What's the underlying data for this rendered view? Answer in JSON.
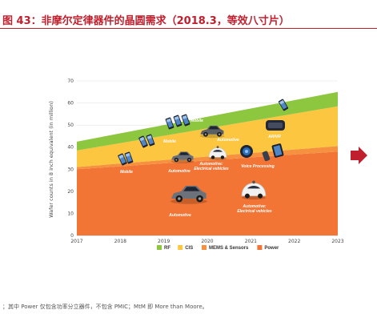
{
  "page": {
    "title": "图 43：非摩尔定律器件的晶圆需求（2018.3，等效八寸片）",
    "footnote": "；其中 Power 仅包含功率分立器件，不包含 PMIC；MtM 即 More than Moore。"
  },
  "colors": {
    "title_red": "#c0202e",
    "Power": "#f37535",
    "MEMS & Sensors": "#f5913f",
    "CIS": "#fdc640",
    "RF": "#8dc63f",
    "arrow": "#c0202e"
  },
  "chart_data": {
    "type": "area",
    "stacked": true,
    "title": "",
    "xlabel": "",
    "ylabel": "Wafer counts in 8 inch equivalent (in million)",
    "x": [
      2017,
      2023
    ],
    "x_ticks": [
      "2017",
      "2018",
      "2019",
      "2020",
      "2021",
      "2022",
      "2023"
    ],
    "ylim": [
      0,
      70
    ],
    "y_ticks": [
      0,
      10,
      20,
      30,
      40,
      50,
      60,
      70
    ],
    "grid": true,
    "legend_position": "bottom",
    "series": [
      {
        "name": "Power",
        "values": [
          30,
          38
        ]
      },
      {
        "name": "MEMS & Sensors",
        "values": [
          1,
          2.5
        ]
      },
      {
        "name": "CIS",
        "values": [
          7.5,
          18
        ]
      },
      {
        "name": "RF",
        "values": [
          4,
          6.5
        ]
      }
    ],
    "legend": [
      "RF",
      "CIS",
      "MEMS & Sensors",
      "Power"
    ],
    "annotations": [
      {
        "id": "mobile-1",
        "label": "Mobile",
        "icon": "smartphone-icon"
      },
      {
        "id": "mobile-2",
        "label": "Mobile",
        "icon": "smartphone-icon"
      },
      {
        "id": "mobile-3",
        "label": "Mobile",
        "icon": "smartphone-icon"
      },
      {
        "id": "automotive-1",
        "label": "Automotive",
        "icon": "car-icon"
      },
      {
        "id": "automotive-2",
        "label": "Automotive",
        "icon": "car-icon"
      },
      {
        "id": "automotive-3",
        "label": "Automotive",
        "icon": "car-icon"
      },
      {
        "id": "automotive-ev-1",
        "label": "Automotive: Electrical vehicles",
        "icon": "electric-car-icon"
      },
      {
        "id": "automotive-ev-2",
        "label": "Automotive: Electrical vehicles",
        "icon": "electric-car-icon"
      },
      {
        "id": "voice",
        "label": "Voice Processing",
        "icon": "microphone-icon"
      },
      {
        "id": "arvr",
        "label": "AR/VR",
        "icon": "vr-headset-icon"
      },
      {
        "id": "phone-2023",
        "label": "",
        "icon": "smartphone-icon"
      }
    ]
  }
}
